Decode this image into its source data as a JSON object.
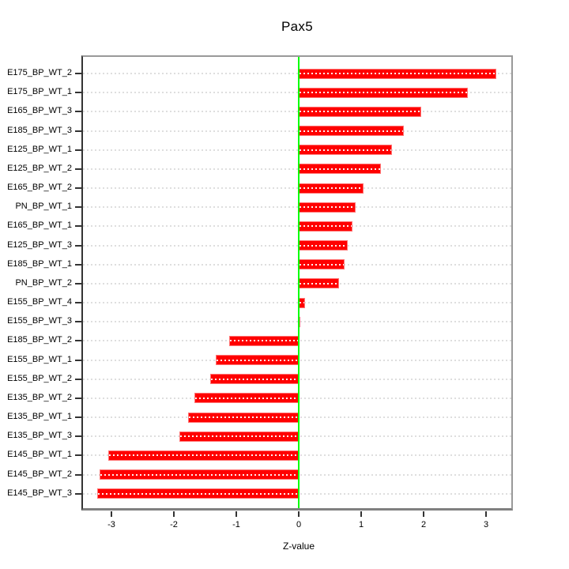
{
  "chart_data": {
    "type": "bar",
    "orientation": "horizontal",
    "title": "Pax5",
    "xlabel": "Z-value",
    "categories": [
      "E175_BP_WT_2",
      "E175_BP_WT_1",
      "E165_BP_WT_3",
      "E185_BP_WT_3",
      "E125_BP_WT_1",
      "E125_BP_WT_2",
      "E165_BP_WT_2",
      "PN_BP_WT_1",
      "E165_BP_WT_1",
      "E125_BP_WT_3",
      "E185_BP_WT_1",
      "PN_BP_WT_2",
      "E155_BP_WT_4",
      "E155_BP_WT_3",
      "E185_BP_WT_2",
      "E155_BP_WT_1",
      "E155_BP_WT_2",
      "E135_BP_WT_2",
      "E135_BP_WT_1",
      "E135_BP_WT_3",
      "E145_BP_WT_1",
      "E145_BP_WT_2",
      "E145_BP_WT_3"
    ],
    "values": [
      3.17,
      2.71,
      1.96,
      1.68,
      1.49,
      1.32,
      1.04,
      0.91,
      0.86,
      0.78,
      0.73,
      0.64,
      0.1,
      0.01,
      -1.11,
      -1.33,
      -1.42,
      -1.67,
      -1.77,
      -1.91,
      -3.05,
      -3.19,
      -3.23
    ],
    "x_ticks": [
      "-3",
      "-2",
      "-1",
      "0",
      "1",
      "2",
      "3"
    ],
    "x_tick_values": [
      -3,
      -2,
      -1,
      0,
      1,
      2,
      3
    ],
    "xlim": [
      -3.48,
      3.43
    ],
    "grid": true,
    "bar_color": "#FF0000",
    "zero_line_color": "#00FF00",
    "grid_color": "#DEDEDE",
    "legend": null
  }
}
